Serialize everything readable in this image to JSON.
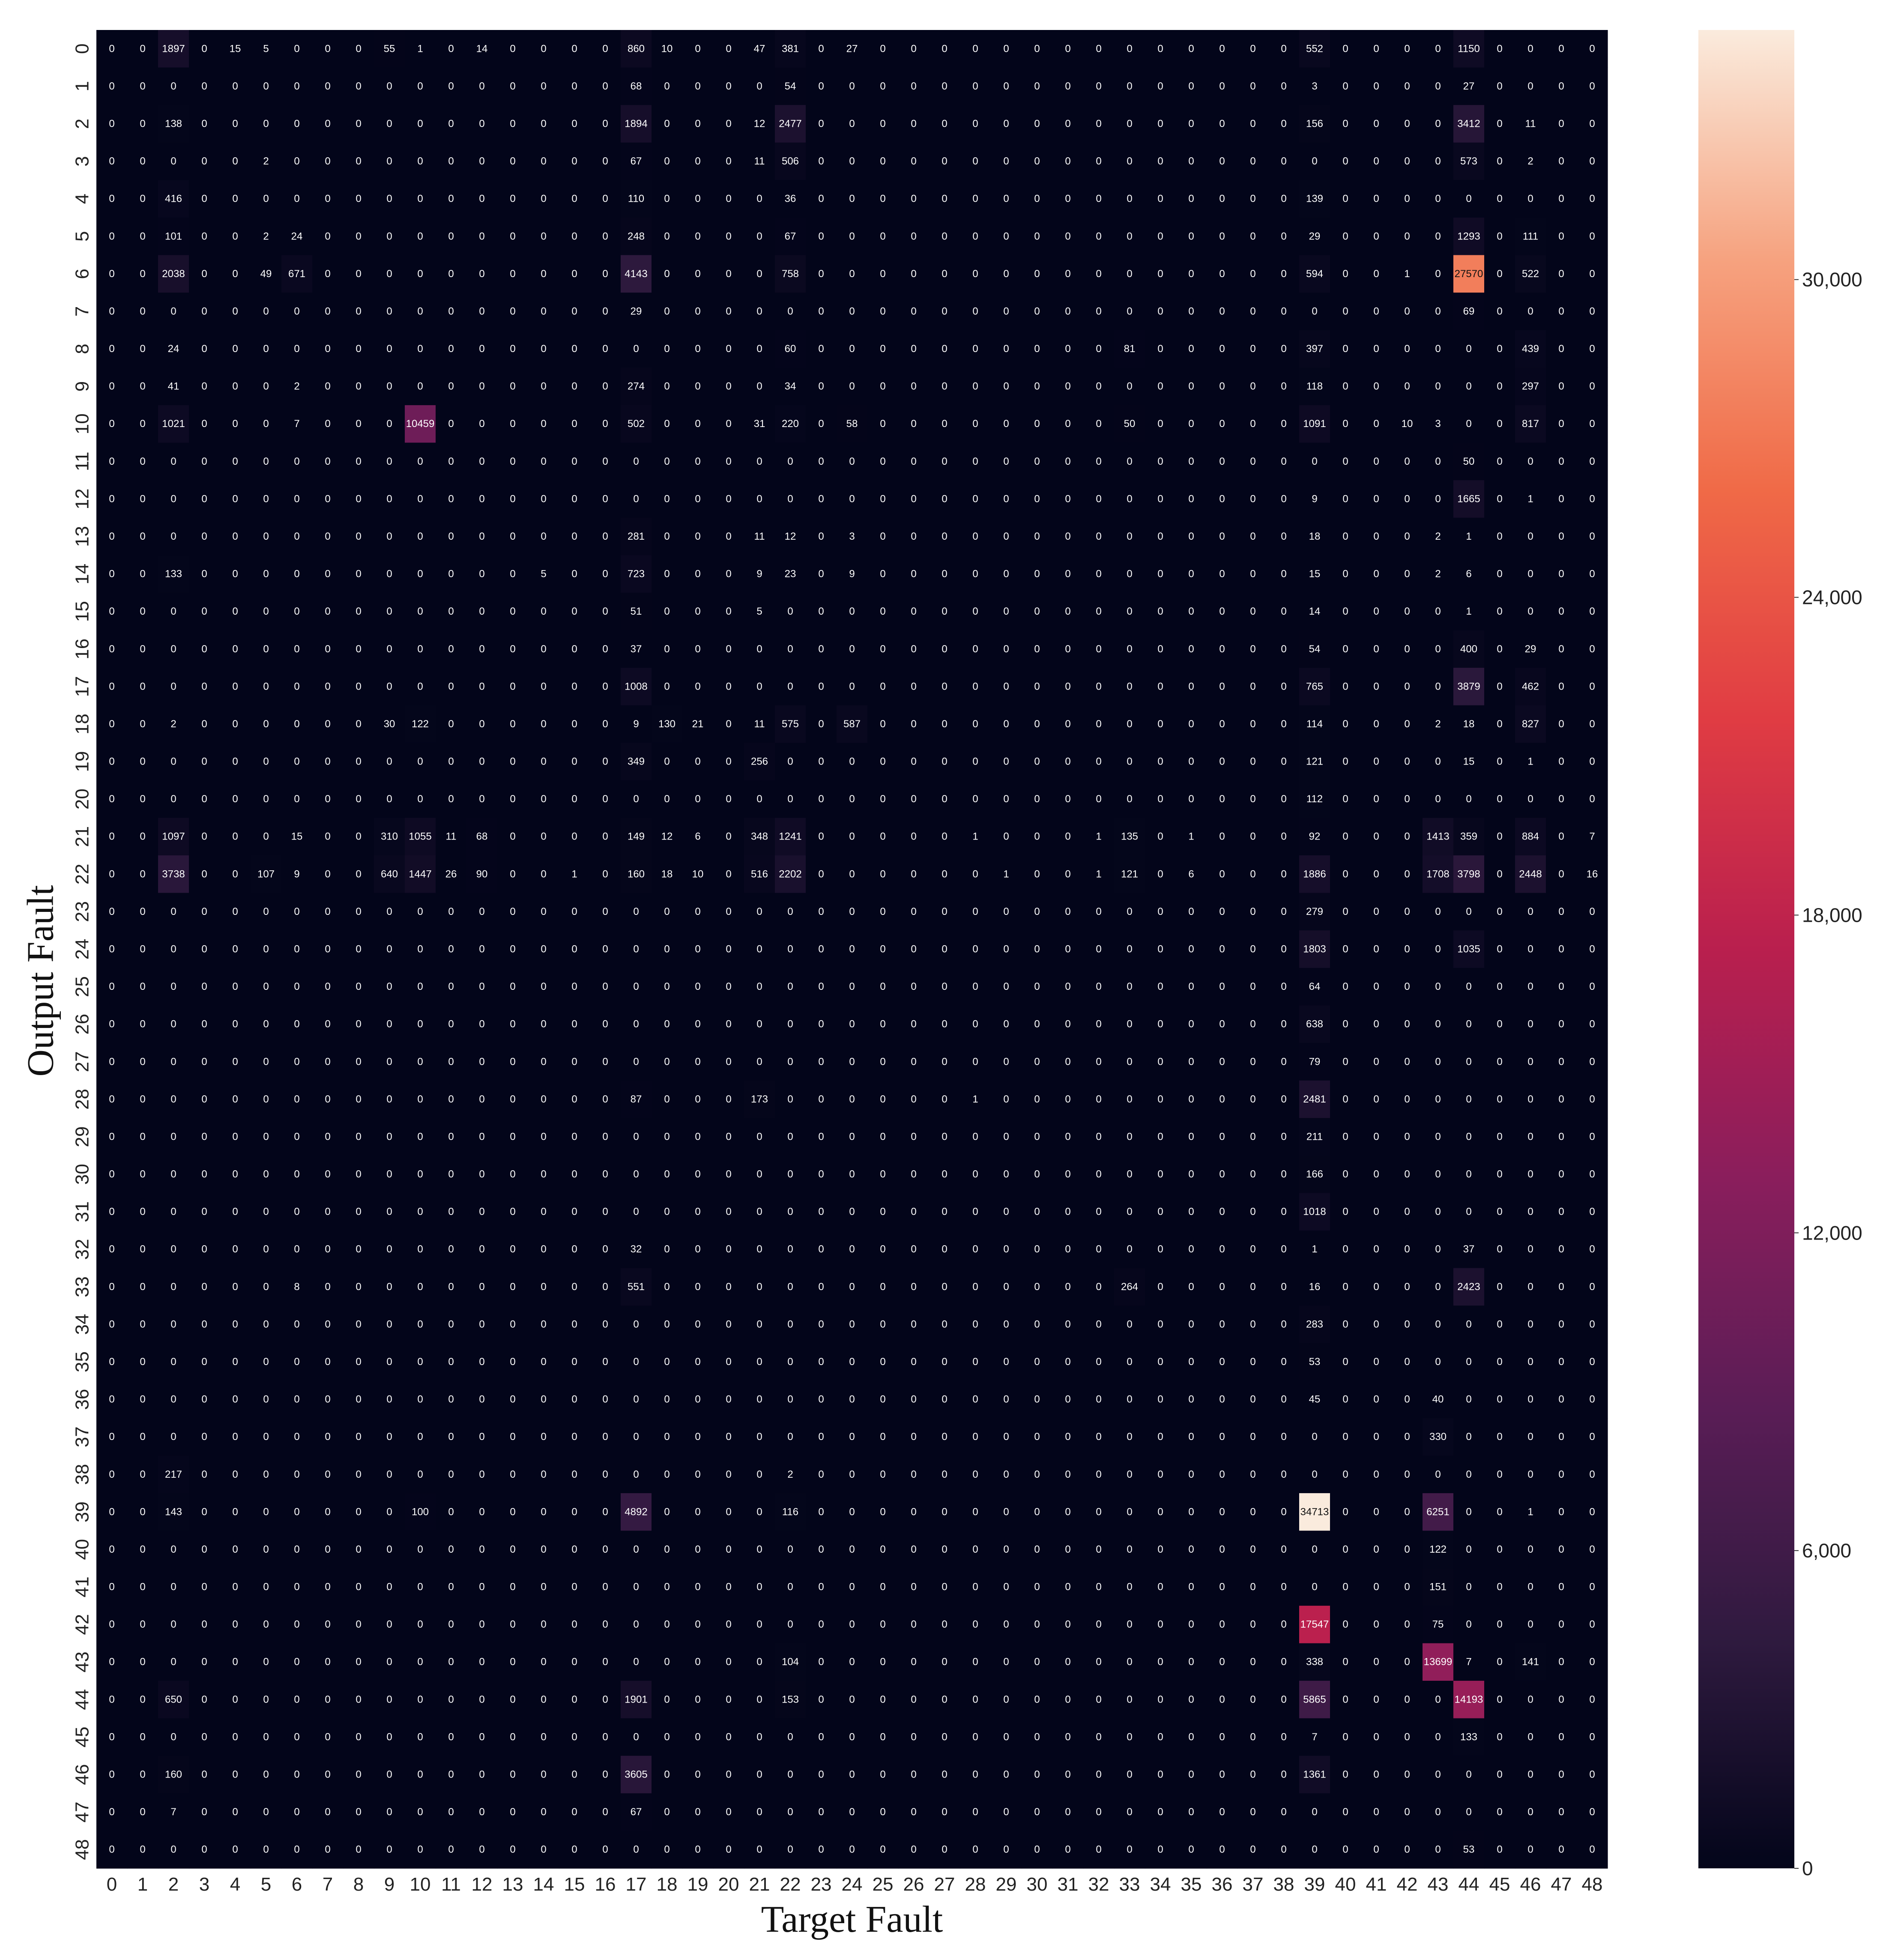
{
  "chart_data": {
    "type": "heatmap",
    "title": "",
    "xlabel": "Target Fault",
    "ylabel": "Output Fault",
    "x_categories": [
      "0",
      "1",
      "2",
      "3",
      "4",
      "5",
      "6",
      "7",
      "8",
      "9",
      "10",
      "11",
      "12",
      "13",
      "14",
      "15",
      "16",
      "17",
      "18",
      "19",
      "20",
      "21",
      "22",
      "23",
      "24",
      "25",
      "26",
      "27",
      "28",
      "29",
      "30",
      "31",
      "32",
      "33",
      "34",
      "35",
      "36",
      "37",
      "38",
      "39",
      "40",
      "41",
      "42",
      "43",
      "44",
      "45",
      "46",
      "47",
      "48"
    ],
    "y_categories": [
      "0",
      "1",
      "2",
      "3",
      "4",
      "5",
      "6",
      "7",
      "8",
      "9",
      "10",
      "11",
      "12",
      "13",
      "14",
      "15",
      "16",
      "17",
      "18",
      "19",
      "20",
      "21",
      "22",
      "23",
      "24",
      "25",
      "26",
      "27",
      "28",
      "29",
      "30",
      "31",
      "32",
      "33",
      "34",
      "35",
      "36",
      "37",
      "38",
      "39",
      "40",
      "41",
      "42",
      "43",
      "44",
      "45",
      "46",
      "47",
      "48"
    ],
    "colorbar": {
      "min": 0,
      "max": 34713,
      "ticks": [
        0,
        6000,
        12000,
        18000,
        24000,
        30000
      ],
      "tick_labels": [
        "0",
        "6,000",
        "12,000",
        "18,000",
        "24,000",
        "30,000"
      ],
      "colormap": "rocket"
    },
    "nonzero_cells": [
      [
        0,
        2,
        1897
      ],
      [
        0,
        4,
        15
      ],
      [
        0,
        5,
        5
      ],
      [
        0,
        9,
        55
      ],
      [
        0,
        10,
        1
      ],
      [
        0,
        12,
        14
      ],
      [
        0,
        17,
        860
      ],
      [
        0,
        18,
        10
      ],
      [
        0,
        21,
        47
      ],
      [
        0,
        22,
        381
      ],
      [
        0,
        24,
        27
      ],
      [
        0,
        39,
        552
      ],
      [
        0,
        44,
        1150
      ],
      [
        1,
        17,
        68
      ],
      [
        1,
        22,
        54
      ],
      [
        1,
        39,
        3
      ],
      [
        1,
        44,
        27
      ],
      [
        2,
        2,
        138
      ],
      [
        2,
        17,
        1894
      ],
      [
        2,
        21,
        12
      ],
      [
        2,
        22,
        2477
      ],
      [
        2,
        39,
        156
      ],
      [
        2,
        44,
        3412
      ],
      [
        2,
        46,
        11
      ],
      [
        3,
        5,
        2
      ],
      [
        3,
        17,
        67
      ],
      [
        3,
        21,
        11
      ],
      [
        3,
        22,
        506
      ],
      [
        3,
        44,
        573
      ],
      [
        3,
        46,
        2
      ],
      [
        4,
        2,
        416
      ],
      [
        4,
        17,
        110
      ],
      [
        4,
        22,
        36
      ],
      [
        4,
        39,
        139
      ],
      [
        5,
        2,
        101
      ],
      [
        5,
        5,
        2
      ],
      [
        5,
        6,
        24
      ],
      [
        5,
        17,
        248
      ],
      [
        5,
        22,
        67
      ],
      [
        5,
        39,
        29
      ],
      [
        5,
        44,
        1293
      ],
      [
        5,
        46,
        111
      ],
      [
        6,
        2,
        2038
      ],
      [
        6,
        5,
        49
      ],
      [
        6,
        6,
        671
      ],
      [
        6,
        17,
        4143
      ],
      [
        6,
        22,
        758
      ],
      [
        6,
        39,
        594
      ],
      [
        6,
        42,
        1
      ],
      [
        6,
        44,
        27570
      ],
      [
        6,
        46,
        522
      ],
      [
        7,
        17,
        29
      ],
      [
        7,
        44,
        69
      ],
      [
        8,
        2,
        24
      ],
      [
        8,
        22,
        60
      ],
      [
        8,
        33,
        81
      ],
      [
        8,
        39,
        397
      ],
      [
        8,
        46,
        439
      ],
      [
        9,
        2,
        41
      ],
      [
        9,
        6,
        2
      ],
      [
        9,
        17,
        274
      ],
      [
        9,
        22,
        34
      ],
      [
        9,
        39,
        118
      ],
      [
        9,
        46,
        297
      ],
      [
        10,
        2,
        1021
      ],
      [
        10,
        6,
        7
      ],
      [
        10,
        10,
        10459
      ],
      [
        10,
        17,
        502
      ],
      [
        10,
        21,
        31
      ],
      [
        10,
        22,
        220
      ],
      [
        10,
        24,
        58
      ],
      [
        10,
        33,
        50
      ],
      [
        10,
        39,
        1091
      ],
      [
        10,
        42,
        10
      ],
      [
        10,
        43,
        3
      ],
      [
        10,
        46,
        817
      ],
      [
        11,
        44,
        50
      ],
      [
        12,
        39,
        9
      ],
      [
        12,
        44,
        1665
      ],
      [
        12,
        46,
        1
      ],
      [
        13,
        17,
        281
      ],
      [
        13,
        21,
        11
      ],
      [
        13,
        22,
        12
      ],
      [
        13,
        24,
        3
      ],
      [
        13,
        39,
        18
      ],
      [
        13,
        43,
        2
      ],
      [
        13,
        44,
        1
      ],
      [
        14,
        2,
        133
      ],
      [
        14,
        14,
        5
      ],
      [
        14,
        17,
        723
      ],
      [
        14,
        21,
        9
      ],
      [
        14,
        22,
        23
      ],
      [
        14,
        24,
        9
      ],
      [
        14,
        39,
        15
      ],
      [
        14,
        43,
        2
      ],
      [
        14,
        44,
        6
      ],
      [
        15,
        17,
        51
      ],
      [
        15,
        21,
        5
      ],
      [
        15,
        39,
        14
      ],
      [
        15,
        44,
        1
      ],
      [
        16,
        17,
        37
      ],
      [
        16,
        39,
        54
      ],
      [
        16,
        44,
        400
      ],
      [
        16,
        46,
        29
      ],
      [
        17,
        17,
        1008
      ],
      [
        17,
        39,
        765
      ],
      [
        17,
        44,
        3879
      ],
      [
        17,
        46,
        462
      ],
      [
        18,
        2,
        2
      ],
      [
        18,
        9,
        30
      ],
      [
        18,
        10,
        122
      ],
      [
        18,
        17,
        9
      ],
      [
        18,
        18,
        130
      ],
      [
        18,
        19,
        21
      ],
      [
        18,
        21,
        11
      ],
      [
        18,
        22,
        575
      ],
      [
        18,
        24,
        587
      ],
      [
        18,
        39,
        114
      ],
      [
        18,
        43,
        2
      ],
      [
        18,
        44,
        18
      ],
      [
        18,
        46,
        827
      ],
      [
        19,
        17,
        349
      ],
      [
        19,
        21,
        256
      ],
      [
        19,
        39,
        121
      ],
      [
        19,
        44,
        15
      ],
      [
        19,
        46,
        1
      ],
      [
        20,
        39,
        112
      ],
      [
        21,
        2,
        1097
      ],
      [
        21,
        6,
        15
      ],
      [
        21,
        9,
        310
      ],
      [
        21,
        10,
        1055
      ],
      [
        21,
        11,
        11
      ],
      [
        21,
        12,
        68
      ],
      [
        21,
        17,
        149
      ],
      [
        21,
        18,
        12
      ],
      [
        21,
        19,
        6
      ],
      [
        21,
        21,
        348
      ],
      [
        21,
        22,
        1241
      ],
      [
        21,
        28,
        1
      ],
      [
        21,
        32,
        1
      ],
      [
        21,
        33,
        135
      ],
      [
        21,
        35,
        1
      ],
      [
        21,
        39,
        92
      ],
      [
        21,
        43,
        1413
      ],
      [
        21,
        44,
        359
      ],
      [
        21,
        46,
        884
      ],
      [
        21,
        48,
        7
      ],
      [
        22,
        2,
        3738
      ],
      [
        22,
        5,
        107
      ],
      [
        22,
        6,
        9
      ],
      [
        22,
        9,
        640
      ],
      [
        22,
        10,
        1447
      ],
      [
        22,
        11,
        26
      ],
      [
        22,
        12,
        90
      ],
      [
        22,
        15,
        1
      ],
      [
        22,
        17,
        160
      ],
      [
        22,
        18,
        18
      ],
      [
        22,
        19,
        10
      ],
      [
        22,
        21,
        516
      ],
      [
        22,
        22,
        2202
      ],
      [
        22,
        29,
        1
      ],
      [
        22,
        32,
        1
      ],
      [
        22,
        33,
        121
      ],
      [
        22,
        35,
        6
      ],
      [
        22,
        39,
        1886
      ],
      [
        22,
        43,
        1708
      ],
      [
        22,
        44,
        3798
      ],
      [
        22,
        46,
        2448
      ],
      [
        22,
        48,
        16
      ],
      [
        23,
        39,
        279
      ],
      [
        24,
        39,
        1803
      ],
      [
        24,
        44,
        1035
      ],
      [
        25,
        39,
        64
      ],
      [
        26,
        39,
        638
      ],
      [
        27,
        39,
        79
      ],
      [
        28,
        17,
        87
      ],
      [
        28,
        21,
        173
      ],
      [
        28,
        28,
        1
      ],
      [
        28,
        39,
        2481
      ],
      [
        29,
        39,
        211
      ],
      [
        30,
        39,
        166
      ],
      [
        31,
        39,
        1018
      ],
      [
        32,
        17,
        32
      ],
      [
        32,
        39,
        1
      ],
      [
        32,
        44,
        37
      ],
      [
        33,
        6,
        8
      ],
      [
        33,
        17,
        551
      ],
      [
        33,
        33,
        264
      ],
      [
        33,
        39,
        16
      ],
      [
        33,
        44,
        2423
      ],
      [
        34,
        39,
        283
      ],
      [
        35,
        39,
        53
      ],
      [
        36,
        39,
        45
      ],
      [
        36,
        43,
        40
      ],
      [
        37,
        43,
        330
      ],
      [
        38,
        2,
        217
      ],
      [
        38,
        22,
        2
      ],
      [
        39,
        2,
        143
      ],
      [
        39,
        10,
        100
      ],
      [
        39,
        17,
        4892
      ],
      [
        39,
        22,
        116
      ],
      [
        39,
        39,
        34713
      ],
      [
        39,
        43,
        6251
      ],
      [
        39,
        46,
        1
      ],
      [
        40,
        43,
        122
      ],
      [
        41,
        43,
        151
      ],
      [
        42,
        39,
        17547
      ],
      [
        42,
        43,
        75
      ],
      [
        43,
        22,
        104
      ],
      [
        43,
        39,
        338
      ],
      [
        43,
        43,
        13699
      ],
      [
        43,
        44,
        7
      ],
      [
        43,
        46,
        141
      ],
      [
        44,
        2,
        650
      ],
      [
        44,
        17,
        1901
      ],
      [
        44,
        22,
        153
      ],
      [
        44,
        39,
        5865
      ],
      [
        44,
        44,
        14193
      ],
      [
        45,
        39,
        7
      ],
      [
        45,
        44,
        133
      ],
      [
        46,
        2,
        160
      ],
      [
        46,
        17,
        3605
      ],
      [
        46,
        39,
        1361
      ],
      [
        47,
        2,
        7
      ],
      [
        47,
        17,
        67
      ],
      [
        48,
        44,
        53
      ]
    ]
  }
}
